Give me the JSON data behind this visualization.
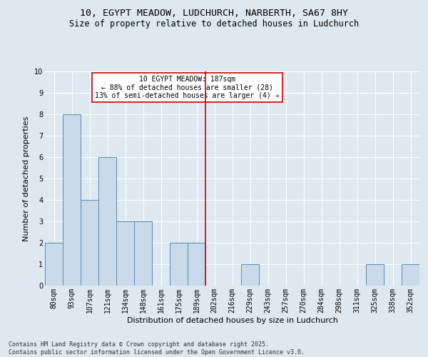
{
  "title_line1": "10, EGYPT MEADOW, LUDCHURCH, NARBERTH, SA67 8HY",
  "title_line2": "Size of property relative to detached houses in Ludchurch",
  "xlabel": "Distribution of detached houses by size in Ludchurch",
  "ylabel": "Number of detached properties",
  "bar_labels": [
    "80sqm",
    "93sqm",
    "107sqm",
    "121sqm",
    "134sqm",
    "148sqm",
    "161sqm",
    "175sqm",
    "189sqm",
    "202sqm",
    "216sqm",
    "229sqm",
    "243sqm",
    "257sqm",
    "270sqm",
    "284sqm",
    "298sqm",
    "311sqm",
    "325sqm",
    "338sqm",
    "352sqm"
  ],
  "bar_values": [
    2,
    8,
    4,
    6,
    3,
    3,
    0,
    2,
    2,
    0,
    0,
    1,
    0,
    0,
    0,
    0,
    0,
    0,
    1,
    0,
    1
  ],
  "bar_color": "#c9daea",
  "bar_edgecolor": "#5a8ab0",
  "ylim": [
    0,
    10
  ],
  "yticks": [
    0,
    1,
    2,
    3,
    4,
    5,
    6,
    7,
    8,
    9,
    10
  ],
  "vline_x_idx": 8,
  "vline_color": "#cc0000",
  "annotation_text": "10 EGYPT MEADOW: 187sqm\n← 88% of detached houses are smaller (28)\n13% of semi-detached houses are larger (4) →",
  "annotation_box_color": "#cc0000",
  "bg_color": "#dde8f0",
  "plot_bg": "#dde8f0",
  "footer_text": "Contains HM Land Registry data © Crown copyright and database right 2025.\nContains public sector information licensed under the Open Government Licence v3.0.",
  "title_fontsize": 9.5,
  "subtitle_fontsize": 8.5,
  "tick_fontsize": 7,
  "ylabel_fontsize": 8,
  "xlabel_fontsize": 8,
  "annotation_fontsize": 7,
  "footer_fontsize": 6
}
